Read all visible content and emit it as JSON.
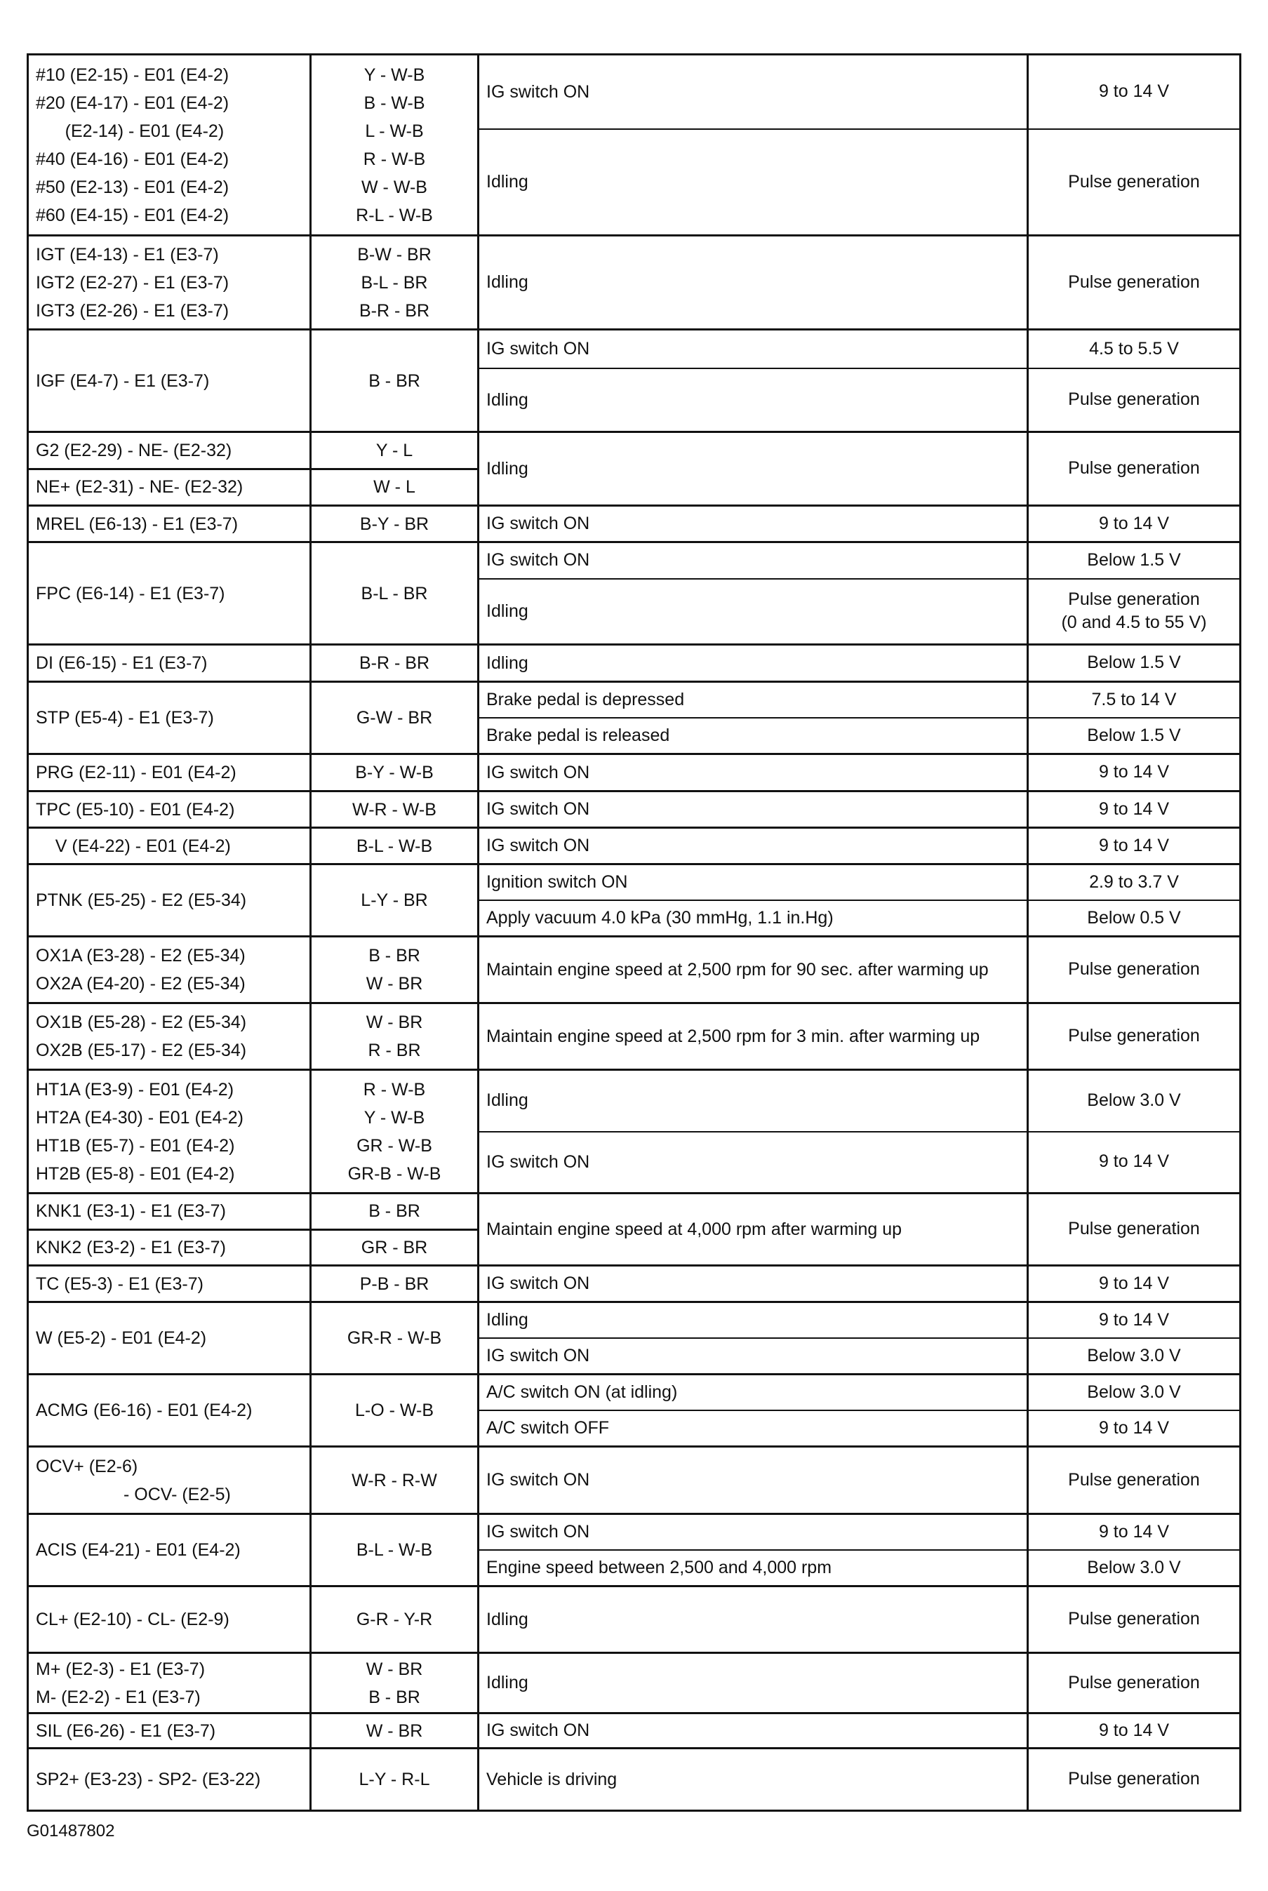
{
  "groups": [
    {
      "terminals": [
        "#10 (E2-15) - E01 (E4-2)",
        "#20 (E4-17) - E01 (E4-2)",
        "      (E2-14) - E01 (E4-2)",
        "#40 (E4-16) - E01 (E4-2)",
        "#50 (E2-13) - E01 (E4-2)",
        "#60 (E4-15) - E01 (E4-2)"
      ],
      "wiring": [
        "Y - W-B",
        "B - W-B",
        "L - W-B",
        "R - W-B",
        "W - W-B",
        "R-L - W-B"
      ],
      "conditions": [
        {
          "condition": "IG switch ON",
          "spec": "9 to 14 V"
        },
        {
          "condition": "Idling",
          "spec": "Pulse generation"
        }
      ]
    },
    {
      "terminals": [
        "IGT (E4-13) - E1 (E3-7)",
        "IGT2 (E2-27) - E1 (E3-7)",
        "IGT3 (E2-26) - E1 (E3-7)"
      ],
      "wiring": [
        "B-W - BR",
        "B-L - BR",
        "B-R - BR"
      ],
      "conditions": [
        {
          "condition": "Idling",
          "spec": "Pulse generation"
        }
      ]
    },
    {
      "terminals": [
        "IGF (E4-7) - E1 (E3-7)"
      ],
      "wiring": [
        "B - BR"
      ],
      "conditions": [
        {
          "condition": "IG switch ON",
          "spec": "4.5 to 5.5 V"
        },
        {
          "condition": "Idling",
          "spec": "Pulse generation"
        }
      ]
    },
    {
      "terminals": [
        "G2 (E2-29) - NE- (E2-32)",
        "NE+ (E2-31) - NE- (E2-32)"
      ],
      "wiring": [
        "Y - L",
        "W - L"
      ],
      "split": true,
      "conditions": [
        {
          "condition": "Idling",
          "spec": "Pulse generation"
        }
      ]
    },
    {
      "terminals": [
        "MREL (E6-13) - E1 (E3-7)"
      ],
      "wiring": [
        "B-Y - BR"
      ],
      "conditions": [
        {
          "condition": "IG switch ON",
          "spec": "9 to 14 V"
        }
      ]
    },
    {
      "terminals": [
        "FPC (E6-14) - E1 (E3-7)"
      ],
      "wiring": [
        "B-L - BR"
      ],
      "conditions": [
        {
          "condition": "IG switch ON",
          "spec": "Below 1.5 V"
        },
        {
          "condition": "Idling",
          "spec": "Pulse generation\n(0 and 4.5 to 55 V)"
        }
      ]
    },
    {
      "terminals": [
        "DI (E6-15) - E1 (E3-7)"
      ],
      "wiring": [
        "B-R - BR"
      ],
      "conditions": [
        {
          "condition": "Idling",
          "spec": "Below 1.5 V"
        }
      ]
    },
    {
      "terminals": [
        "STP (E5-4) - E1 (E3-7)"
      ],
      "wiring": [
        "G-W - BR"
      ],
      "conditions": [
        {
          "condition": "Brake pedal is depressed",
          "spec": "7.5 to 14 V"
        },
        {
          "condition": "Brake pedal is released",
          "spec": "Below 1.5 V"
        }
      ]
    },
    {
      "terminals": [
        "PRG (E2-11) - E01 (E4-2)"
      ],
      "wiring": [
        "B-Y - W-B"
      ],
      "conditions": [
        {
          "condition": "IG switch ON",
          "spec": "9 to 14 V"
        }
      ]
    },
    {
      "terminals": [
        "TPC (E5-10) - E01 (E4-2)"
      ],
      "wiring": [
        "W-R - W-B"
      ],
      "conditions": [
        {
          "condition": "IG switch ON",
          "spec": "9 to 14 V"
        }
      ]
    },
    {
      "terminals": [
        "    V (E4-22) - E01 (E4-2)"
      ],
      "wiring": [
        "B-L - W-B"
      ],
      "conditions": [
        {
          "condition": "IG switch ON",
          "spec": "9 to 14 V"
        }
      ]
    },
    {
      "terminals": [
        "PTNK (E5-25) - E2 (E5-34)"
      ],
      "wiring": [
        "L-Y - BR"
      ],
      "conditions": [
        {
          "condition": "Ignition switch ON",
          "spec": "2.9 to 3.7 V"
        },
        {
          "condition": "Apply vacuum 4.0 kPa (30 mmHg, 1.1 in.Hg)",
          "spec": "Below 0.5 V"
        }
      ]
    },
    {
      "terminals": [
        "OX1A (E3-28) - E2 (E5-34)",
        "OX2A (E4-20) - E2 (E5-34)"
      ],
      "wiring": [
        "B - BR",
        "W - BR"
      ],
      "conditions": [
        {
          "condition": "Maintain engine speed at 2,500 rpm for 90 sec. after warming up",
          "spec": "Pulse generation"
        }
      ]
    },
    {
      "terminals": [
        "OX1B (E5-28) - E2 (E5-34)",
        "OX2B (E5-17) - E2 (E5-34)"
      ],
      "wiring": [
        "W - BR",
        "R - BR"
      ],
      "conditions": [
        {
          "condition": "Maintain engine speed at 2,500 rpm for 3 min. after warming up",
          "spec": "Pulse generation"
        }
      ]
    },
    {
      "terminals": [
        "HT1A (E3-9) - E01 (E4-2)",
        "HT2A (E4-30) - E01 (E4-2)",
        "HT1B (E5-7) - E01 (E4-2)",
        "HT2B (E5-8) - E01 (E4-2)"
      ],
      "wiring": [
        "R - W-B",
        "Y - W-B",
        "GR - W-B",
        "GR-B - W-B"
      ],
      "conditions": [
        {
          "condition": "Idling",
          "spec": "Below 3.0 V"
        },
        {
          "condition": "IG switch ON",
          "spec": "9 to 14 V"
        }
      ]
    },
    {
      "terminals": [
        "KNK1 (E3-1) - E1 (E3-7)",
        "KNK2 (E3-2) - E1 (E3-7)"
      ],
      "wiring": [
        "B - BR",
        "GR - BR"
      ],
      "split": true,
      "conditions": [
        {
          "condition": "Maintain engine speed at 4,000 rpm after warming up",
          "spec": "Pulse generation"
        }
      ]
    },
    {
      "terminals": [
        "TC (E5-3) - E1 (E3-7)"
      ],
      "wiring": [
        "P-B - BR"
      ],
      "conditions": [
        {
          "condition": "IG switch ON",
          "spec": "9 to 14 V"
        }
      ]
    },
    {
      "terminals": [
        "W (E5-2) - E01 (E4-2)"
      ],
      "wiring": [
        "GR-R - W-B"
      ],
      "conditions": [
        {
          "condition": "Idling",
          "spec": "9 to 14 V"
        },
        {
          "condition": "IG switch ON",
          "spec": "Below 3.0 V"
        }
      ]
    },
    {
      "terminals": [
        "ACMG (E6-16) - E01 (E4-2)"
      ],
      "wiring": [
        "L-O - W-B"
      ],
      "conditions": [
        {
          "condition": "A/C switch ON (at idling)",
          "spec": "Below 3.0 V"
        },
        {
          "condition": "A/C switch OFF",
          "spec": "9 to 14 V"
        }
      ]
    },
    {
      "terminals": [
        "OCV+ (E2-6)",
        "                  - OCV- (E2-5)"
      ],
      "wiring": [
        "W-R - R-W"
      ],
      "conditions": [
        {
          "condition": "IG switch ON",
          "spec": "Pulse generation"
        }
      ]
    },
    {
      "terminals": [
        "ACIS (E4-21) - E01 (E4-2)"
      ],
      "wiring": [
        "B-L - W-B"
      ],
      "conditions": [
        {
          "condition": "IG switch ON",
          "spec": "9 to 14 V"
        },
        {
          "condition": "Engine speed between 2,500 and 4,000 rpm",
          "spec": "Below 3.0 V"
        }
      ]
    },
    {
      "terminals": [
        "CL+ (E2-10) - CL- (E2-9)"
      ],
      "wiring": [
        "G-R - Y-R"
      ],
      "conditions": [
        {
          "condition": "Idling",
          "spec": "Pulse generation"
        }
      ]
    },
    {
      "terminals": [
        "M+ (E2-3) - E1 (E3-7)",
        "M- (E2-2) - E1 (E3-7)"
      ],
      "wiring": [
        "W - BR",
        "B - BR"
      ],
      "conditions": [
        {
          "condition": "Idling",
          "spec": "Pulse generation"
        }
      ]
    },
    {
      "terminals": [
        "SIL (E6-26) - E1 (E3-7)"
      ],
      "wiring": [
        "W - BR"
      ],
      "conditions": [
        {
          "condition": "IG switch ON",
          "spec": "9 to 14 V"
        }
      ]
    },
    {
      "terminals": [
        "SP2+ (E3-23) - SP2- (E3-22)"
      ],
      "wiring": [
        "L-Y - R-L"
      ],
      "conditions": [
        {
          "condition": "Vehicle is driving",
          "spec": "Pulse generation"
        }
      ]
    }
  ],
  "caption": "G01487802"
}
